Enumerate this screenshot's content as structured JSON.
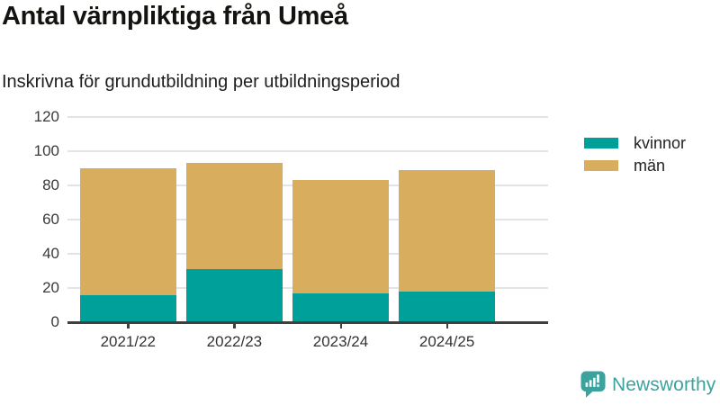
{
  "header": {
    "title": "Antal värnpliktiga från Umeå",
    "subtitle": "Inskrivna för grundutbildning per utbildningsperiod"
  },
  "chart_data": {
    "type": "bar",
    "stacked": true,
    "title": "Antal värnpliktiga från Umeå",
    "subtitle": "Inskrivna för grundutbildning per utbildningsperiod",
    "categories": [
      "2021/22",
      "2022/23",
      "2023/24",
      "2024/25"
    ],
    "series": [
      {
        "name": "kvinnor",
        "color": "#00A09A",
        "values": [
          16,
          31,
          17,
          18
        ]
      },
      {
        "name": "män",
        "color": "#D9AD5E",
        "values": [
          74,
          62,
          66,
          71
        ]
      }
    ],
    "stack_totals": [
      90,
      93,
      83,
      89
    ],
    "xlabel": "",
    "ylabel": "",
    "ylim": [
      0,
      120
    ],
    "yticks": [
      0,
      20,
      40,
      60,
      80,
      100,
      120
    ],
    "grid": true,
    "legend_position": "right",
    "axis_color": "#3f3f3f",
    "gridline_color": "#e4e4e4"
  },
  "footer": {
    "brand": "Newsworthy",
    "brand_color": "#3BA29D"
  }
}
